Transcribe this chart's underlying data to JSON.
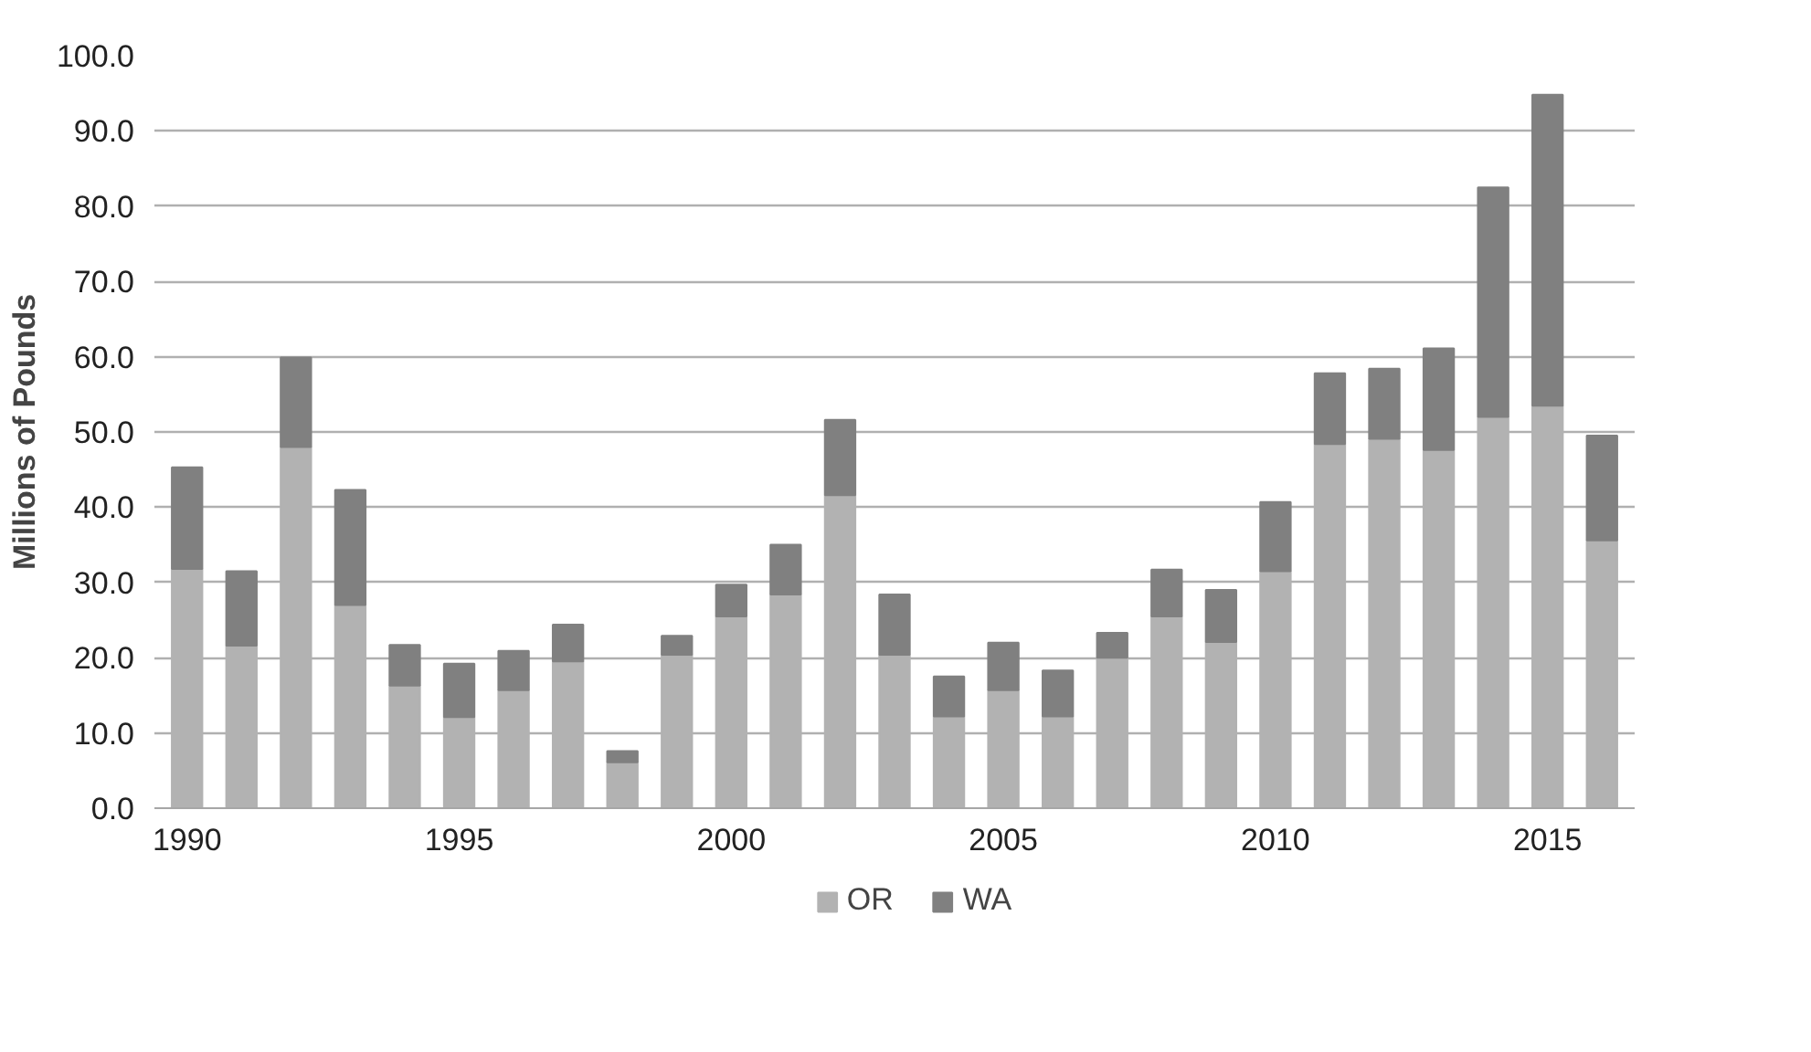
{
  "chart_data": {
    "type": "bar",
    "stacked": true,
    "ylabel": "Millions of Pounds",
    "categories": [
      "1990",
      null,
      null,
      null,
      null,
      "1995",
      null,
      null,
      null,
      null,
      "2000",
      null,
      null,
      null,
      null,
      "2005",
      null,
      null,
      null,
      null,
      "2010",
      null,
      null,
      null,
      null,
      "2015",
      null
    ],
    "series": [
      {
        "name": "OR",
        "color": "#b2b2b2",
        "values": [
          31.8,
          21.6,
          48.0,
          27.0,
          16.3,
          12.1,
          15.7,
          19.5,
          6.1,
          20.4,
          25.5,
          28.4,
          41.6,
          20.4,
          12.2,
          15.7,
          12.2,
          20.0,
          25.5,
          22.1,
          31.5,
          48.4,
          49.1,
          47.6,
          52.0,
          53.5,
          35.6
        ]
      },
      {
        "name": "WA",
        "color": "#808080",
        "values": [
          13.5,
          9.9,
          11.9,
          15.3,
          5.4,
          7.1,
          5.2,
          4.9,
          1.5,
          2.5,
          4.2,
          6.6,
          10.0,
          8.0,
          5.3,
          6.3,
          6.1,
          3.3,
          6.2,
          6.9,
          9.2,
          9.4,
          9.3,
          13.5,
          30.5,
          41.3,
          13.9
        ]
      }
    ],
    "ylim": [
      0,
      100
    ],
    "yticks": [
      {
        "value": 0,
        "label": "0.0"
      },
      {
        "value": 10,
        "label": "10.0"
      },
      {
        "value": 20,
        "label": "20.0"
      },
      {
        "value": 30,
        "label": "30.0"
      },
      {
        "value": 40,
        "label": "40.0"
      },
      {
        "value": 50,
        "label": "50.0"
      },
      {
        "value": 60,
        "label": "60.0"
      },
      {
        "value": 70,
        "label": "70.0"
      },
      {
        "value": 80,
        "label": "80.0"
      },
      {
        "value": 90,
        "label": "90.0"
      },
      {
        "value": 100,
        "label": "100.0"
      }
    ],
    "grid": "y",
    "legend": "bottom"
  }
}
